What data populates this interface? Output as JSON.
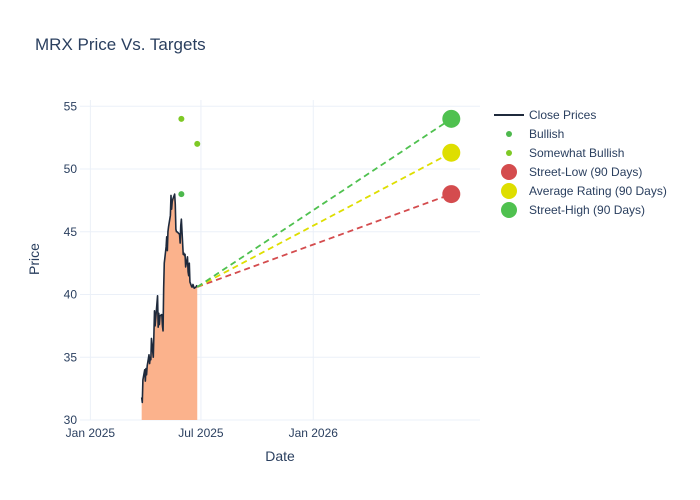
{
  "chart_data": {
    "type": "line",
    "title": "MRX Price Vs. Targets",
    "xlabel": "Date",
    "ylabel": "Price",
    "xlim": [
      "2024-12-15",
      "2026-10-01"
    ],
    "ylim": [
      30,
      55.5
    ],
    "x_ticks": [
      {
        "date": "2025-01-01",
        "label": "Jan 2025"
      },
      {
        "date": "2025-07-01",
        "label": "Jul 2025"
      },
      {
        "date": "2026-01-01",
        "label": "Jan 2026"
      }
    ],
    "y_ticks": [
      30,
      35,
      40,
      45,
      50,
      55
    ],
    "grid": true,
    "legend_position": "right",
    "colors": {
      "close": "#1f2a3c",
      "fill": "#fbb28c",
      "bullish": "#4db84d",
      "somewhat_bullish": "#7ec925",
      "street_low": "#d44c4e",
      "average": "#dede00",
      "street_high": "#4fc14f"
    },
    "close_prices": {
      "name": "Close Prices",
      "x": [
        "2025-03-26",
        "2025-03-27",
        "2025-03-28",
        "2025-03-31",
        "2025-04-01",
        "2025-04-02",
        "2025-04-03",
        "2025-04-04",
        "2025-04-07",
        "2025-04-08",
        "2025-04-09",
        "2025-04-10",
        "2025-04-11",
        "2025-04-14",
        "2025-04-15",
        "2025-04-16",
        "2025-04-17",
        "2025-04-21",
        "2025-04-22",
        "2025-04-23",
        "2025-04-24",
        "2025-04-25",
        "2025-04-28",
        "2025-04-29",
        "2025-04-30",
        "2025-05-01",
        "2025-05-02",
        "2025-05-05",
        "2025-05-06",
        "2025-05-07",
        "2025-05-08",
        "2025-05-09",
        "2025-05-12",
        "2025-05-13",
        "2025-05-14",
        "2025-05-15",
        "2025-05-16",
        "2025-05-19",
        "2025-05-20",
        "2025-05-21",
        "2025-05-22",
        "2025-05-23",
        "2025-05-27",
        "2025-05-28",
        "2025-05-29",
        "2025-05-30",
        "2025-06-02",
        "2025-06-03",
        "2025-06-04",
        "2025-06-05",
        "2025-06-06",
        "2025-06-09",
        "2025-06-10",
        "2025-06-11",
        "2025-06-12",
        "2025-06-13",
        "2025-06-16",
        "2025-06-17",
        "2025-06-18",
        "2025-06-20",
        "2025-06-23",
        "2025-06-24",
        "2025-06-25"
      ],
      "y": [
        31.8,
        31.4,
        33.2,
        34.0,
        33.1,
        34.1,
        33.6,
        34.3,
        35.2,
        34.5,
        35.0,
        34.8,
        36.5,
        35.0,
        36.8,
        38.7,
        37.5,
        39.9,
        37.4,
        38.5,
        37.6,
        38.3,
        38.4,
        37.5,
        37.1,
        40.5,
        42.5,
        43.8,
        44.6,
        43.5,
        45.0,
        45.4,
        46.3,
        47.9,
        46.8,
        47.4,
        47.6,
        48.0,
        47.2,
        45.2,
        45.0,
        45.0,
        44.8,
        44.1,
        45.5,
        46.0,
        43.2,
        43.3,
        43.1,
        43.2,
        42.2,
        43.0,
        41.8,
        41.5,
        42.5,
        41.0,
        40.6,
        40.6,
        40.8,
        40.5,
        40.6,
        40.7,
        40.6
      ]
    },
    "bullish": {
      "name": "Bullish",
      "x": [
        "2025-05-30"
      ],
      "y": [
        48
      ]
    },
    "somewhat_bullish": {
      "name": "Somewhat Bullish",
      "x": [
        "2025-05-30",
        "2025-06-25"
      ],
      "y": [
        54,
        52
      ]
    },
    "targets": {
      "start": {
        "x": "2025-06-25",
        "y": 40.6
      },
      "end_x": "2026-08-15",
      "street_low": {
        "name": "Street-Low (90 Days)",
        "y": 48
      },
      "average": {
        "name": "Average Rating (90 Days)",
        "y": 51.3
      },
      "street_high": {
        "name": "Street-High (90 Days)",
        "y": 54
      }
    }
  }
}
